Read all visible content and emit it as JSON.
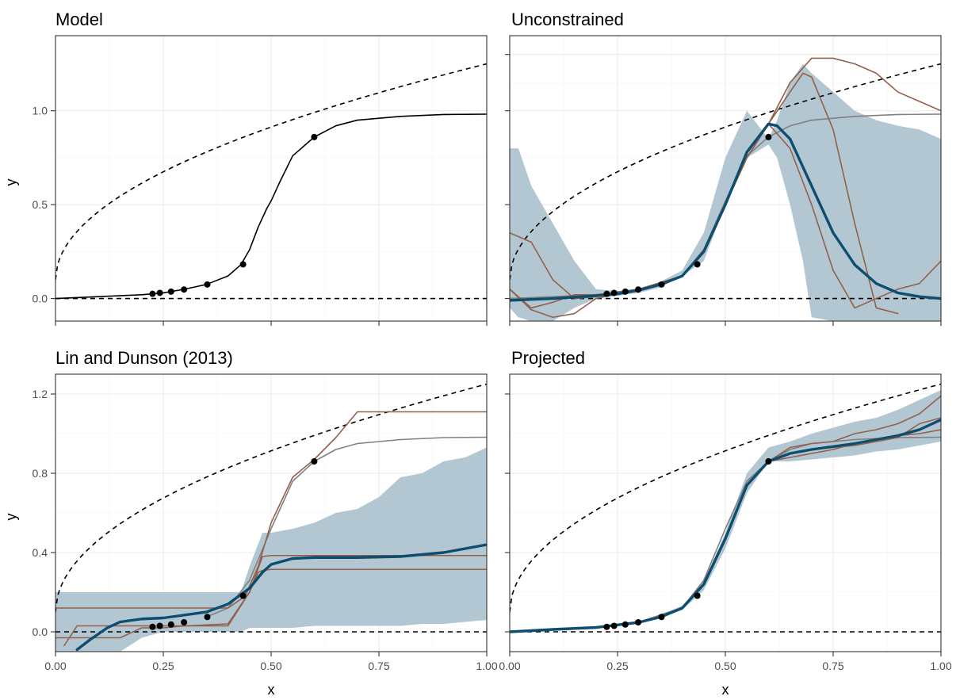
{
  "style": {
    "band_color": "#b3c7d3",
    "mean_color": "#0d4d6f",
    "draw_color": "#93604a",
    "truth_color": "#808080",
    "bound_color": "#000000",
    "point_color": "#000000"
  },
  "x_axis": {
    "label": "x",
    "ticks": [
      "0.00",
      "0.25",
      "0.50",
      "0.75",
      "1.00"
    ]
  },
  "y_axis": {
    "label": "y"
  },
  "chart_data": [
    {
      "type": "line",
      "title": "Model",
      "xlabel": "",
      "ylabel": "y",
      "xlim": [
        0,
        1
      ],
      "ylim": [
        -0.12,
        1.4
      ],
      "yticks": [
        "0.0",
        "0.5",
        "1.0"
      ],
      "grid": true,
      "bounds": {
        "lower": "y = 0 (dashed)",
        "upper": "y = 0.1 + 1.15*sqrt(x) (dashed)"
      },
      "observations": {
        "x": [
          0.225,
          0.242,
          0.268,
          0.298,
          0.352,
          0.435,
          0.6
        ],
        "y": [
          0.025,
          0.03,
          0.037,
          0.048,
          0.075,
          0.182,
          0.86
        ]
      },
      "series": [
        {
          "role": "truth",
          "x": [
            0,
            0.1,
            0.2,
            0.25,
            0.3,
            0.35,
            0.4,
            0.43,
            0.45,
            0.47,
            0.49,
            0.5,
            0.52,
            0.55,
            0.6,
            0.65,
            0.7,
            0.8,
            0.9,
            1.0
          ],
          "y": [
            0,
            0.01,
            0.02,
            0.03,
            0.05,
            0.075,
            0.12,
            0.18,
            0.26,
            0.38,
            0.48,
            0.52,
            0.62,
            0.76,
            0.86,
            0.92,
            0.95,
            0.97,
            0.98,
            0.982
          ]
        }
      ]
    },
    {
      "type": "line",
      "title": "Unconstrained",
      "xlabel": "",
      "ylabel": "",
      "xlim": [
        0,
        1
      ],
      "ylim": [
        -0.12,
        1.4
      ],
      "yticks": [
        "",
        "",
        "",
        ""
      ],
      "grid": true,
      "observations": {
        "x": [
          0.225,
          0.242,
          0.268,
          0.298,
          0.352,
          0.435,
          0.6
        ],
        "y": [
          0.025,
          0.03,
          0.037,
          0.048,
          0.075,
          0.182,
          0.86
        ]
      },
      "band": {
        "x": [
          0,
          0.02,
          0.05,
          0.1,
          0.15,
          0.2,
          0.25,
          0.3,
          0.35,
          0.4,
          0.45,
          0.5,
          0.55,
          0.6,
          0.62,
          0.65,
          0.68,
          0.7,
          0.75,
          0.8,
          0.85,
          0.9,
          0.95,
          1.0
        ],
        "upper": [
          0.8,
          0.8,
          0.6,
          0.4,
          0.2,
          0.05,
          0.04,
          0.05,
          0.09,
          0.15,
          0.35,
          0.75,
          1.0,
          0.85,
          0.95,
          1.15,
          1.25,
          1.2,
          1.1,
          1.0,
          0.95,
          0.92,
          0.9,
          0.85
        ],
        "lower": [
          -0.05,
          -0.1,
          -0.12,
          -0.12,
          -0.05,
          0.0,
          0.015,
          0.03,
          0.06,
          0.12,
          0.2,
          0.5,
          0.75,
          0.82,
          0.75,
          0.5,
          0.2,
          -0.1,
          -0.12,
          -0.12,
          -0.12,
          -0.12,
          -0.12,
          -0.12
        ]
      },
      "series": [
        {
          "role": "truth",
          "x": [
            0,
            0.2,
            0.3,
            0.4,
            0.45,
            0.5,
            0.55,
            0.6,
            0.65,
            0.7,
            0.8,
            0.9,
            1.0
          ],
          "y": [
            0,
            0.02,
            0.05,
            0.12,
            0.26,
            0.52,
            0.76,
            0.86,
            0.92,
            0.95,
            0.97,
            0.98,
            0.982
          ]
        },
        {
          "role": "mean",
          "x": [
            0,
            0.1,
            0.2,
            0.25,
            0.3,
            0.35,
            0.4,
            0.45,
            0.5,
            0.55,
            0.6,
            0.62,
            0.65,
            0.7,
            0.75,
            0.8,
            0.85,
            0.9,
            0.95,
            1.0
          ],
          "y": [
            -0.01,
            0.0,
            0.015,
            0.025,
            0.045,
            0.075,
            0.12,
            0.25,
            0.5,
            0.78,
            0.93,
            0.92,
            0.85,
            0.6,
            0.35,
            0.18,
            0.08,
            0.03,
            0.01,
            0.0
          ]
        },
        {
          "role": "draw",
          "x": [
            0,
            0.05,
            0.1,
            0.15,
            0.2,
            0.3,
            0.4,
            0.45,
            0.5,
            0.55,
            0.6,
            0.65,
            0.7,
            0.75,
            0.8,
            0.85,
            0.9,
            0.95,
            1.0
          ],
          "y": [
            0.35,
            0.3,
            0.1,
            0.0,
            0.01,
            0.05,
            0.12,
            0.26,
            0.5,
            0.75,
            0.93,
            1.15,
            1.28,
            1.28,
            1.25,
            1.2,
            1.1,
            1.05,
            1.0
          ]
        },
        {
          "role": "draw",
          "x": [
            0,
            0.05,
            0.1,
            0.15,
            0.2,
            0.3,
            0.4,
            0.45,
            0.5,
            0.55,
            0.6,
            0.65,
            0.68,
            0.7,
            0.75,
            0.8,
            0.85,
            0.9
          ],
          "y": [
            0.05,
            -0.05,
            -0.02,
            0.02,
            0.02,
            0.05,
            0.12,
            0.26,
            0.5,
            0.75,
            0.93,
            1.1,
            1.2,
            1.18,
            0.9,
            0.4,
            -0.05,
            -0.08
          ]
        },
        {
          "role": "draw",
          "x": [
            0,
            0.05,
            0.1,
            0.15,
            0.2,
            0.3,
            0.4,
            0.45,
            0.5,
            0.55,
            0.6,
            0.65,
            0.7,
            0.75,
            0.8,
            0.85,
            0.9,
            0.95,
            1.0
          ],
          "y": [
            0.05,
            -0.06,
            -0.1,
            -0.08,
            0.0,
            0.05,
            0.12,
            0.26,
            0.5,
            0.75,
            0.93,
            0.8,
            0.5,
            0.15,
            -0.05,
            0.0,
            0.05,
            0.08,
            0.2
          ]
        }
      ]
    },
    {
      "type": "line",
      "title": "Lin and Dunson (2013)",
      "xlabel": "x",
      "ylabel": "y",
      "xlim": [
        0,
        1
      ],
      "ylim": [
        -0.1,
        1.3
      ],
      "yticks": [
        "0.0",
        "0.4",
        "0.8",
        "1.2"
      ],
      "grid": true,
      "observations": {
        "x": [
          0.225,
          0.242,
          0.268,
          0.298,
          0.352,
          0.435,
          0.6
        ],
        "y": [
          0.025,
          0.03,
          0.037,
          0.048,
          0.075,
          0.182,
          0.86
        ]
      },
      "band": {
        "x": [
          0,
          0.05,
          0.1,
          0.15,
          0.2,
          0.25,
          0.3,
          0.35,
          0.4,
          0.43,
          0.45,
          0.48,
          0.5,
          0.55,
          0.6,
          0.65,
          0.7,
          0.75,
          0.8,
          0.85,
          0.9,
          0.95,
          1.0
        ],
        "upper": [
          0.2,
          0.2,
          0.2,
          0.2,
          0.2,
          0.2,
          0.2,
          0.2,
          0.2,
          0.2,
          0.33,
          0.5,
          0.5,
          0.52,
          0.55,
          0.6,
          0.62,
          0.68,
          0.78,
          0.8,
          0.86,
          0.88,
          0.93
        ],
        "lower": [
          -0.1,
          -0.1,
          -0.1,
          -0.1,
          -0.03,
          0.0,
          0.0,
          0.0,
          0.0,
          0.0,
          0.02,
          0.02,
          0.02,
          0.02,
          0.03,
          0.03,
          0.03,
          0.03,
          0.03,
          0.04,
          0.04,
          0.05,
          0.06
        ]
      },
      "series": [
        {
          "role": "truth",
          "x": [
            0.35,
            0.4,
            0.45,
            0.5,
            0.55,
            0.6,
            0.65,
            0.7,
            0.8,
            0.9,
            1.0
          ],
          "y": [
            0.075,
            0.12,
            0.26,
            0.52,
            0.76,
            0.86,
            0.92,
            0.95,
            0.97,
            0.98,
            0.982
          ]
        },
        {
          "role": "mean",
          "x": [
            0.05,
            0.08,
            0.12,
            0.15,
            0.2,
            0.25,
            0.3,
            0.35,
            0.4,
            0.45,
            0.48,
            0.5,
            0.55,
            0.6,
            0.7,
            0.8,
            0.9,
            1.0
          ],
          "y": [
            -0.09,
            -0.04,
            0.02,
            0.05,
            0.065,
            0.07,
            0.085,
            0.1,
            0.14,
            0.22,
            0.3,
            0.34,
            0.37,
            0.375,
            0.375,
            0.38,
            0.4,
            0.44
          ]
        },
        {
          "role": "draw",
          "x": [
            0,
            0.2,
            0.4,
            0.44,
            0.47,
            0.5,
            0.55,
            0.6,
            0.65,
            0.7,
            1.0
          ],
          "y": [
            0.12,
            0.12,
            0.12,
            0.18,
            0.33,
            0.55,
            0.78,
            0.87,
            0.98,
            1.11,
            1.11
          ]
        },
        {
          "role": "draw",
          "x": [
            0.02,
            0.05,
            0.1,
            0.2,
            0.3,
            0.4,
            0.45,
            0.48,
            0.5,
            1.0
          ],
          "y": [
            -0.07,
            0.03,
            0.03,
            0.03,
            0.03,
            0.04,
            0.2,
            0.38,
            0.385,
            0.385
          ]
        },
        {
          "role": "draw",
          "x": [
            0,
            0.1,
            0.15,
            0.2,
            0.25,
            0.3,
            0.4,
            0.45,
            0.47,
            0.48,
            0.5,
            1.0
          ],
          "y": [
            -0.03,
            -0.03,
            -0.03,
            0.02,
            0.02,
            0.03,
            0.03,
            0.2,
            0.3,
            0.31,
            0.315,
            0.315
          ]
        }
      ]
    },
    {
      "type": "line",
      "title": "Projected",
      "xlabel": "x",
      "ylabel": "",
      "xlim": [
        0,
        1
      ],
      "ylim": [
        -0.1,
        1.3
      ],
      "yticks": [
        "",
        "",
        "",
        ""
      ],
      "grid": true,
      "observations": {
        "x": [
          0.225,
          0.242,
          0.268,
          0.298,
          0.352,
          0.435,
          0.6
        ],
        "y": [
          0.025,
          0.03,
          0.037,
          0.048,
          0.075,
          0.182,
          0.86
        ]
      },
      "band": {
        "x": [
          0,
          0.1,
          0.2,
          0.3,
          0.4,
          0.45,
          0.5,
          0.55,
          0.6,
          0.65,
          0.7,
          0.75,
          0.8,
          0.85,
          0.9,
          0.95,
          1.0
        ],
        "upper": [
          0.0,
          0.015,
          0.025,
          0.05,
          0.13,
          0.25,
          0.5,
          0.8,
          0.93,
          0.96,
          1.0,
          1.03,
          1.06,
          1.08,
          1.12,
          1.17,
          1.22
        ],
        "lower": [
          0.0,
          0.01,
          0.02,
          0.04,
          0.11,
          0.21,
          0.42,
          0.7,
          0.86,
          0.86,
          0.87,
          0.88,
          0.89,
          0.91,
          0.92,
          0.94,
          0.96
        ]
      },
      "series": [
        {
          "role": "truth",
          "x": [
            0,
            0.2,
            0.3,
            0.4,
            0.45,
            0.5,
            0.55,
            0.6,
            0.65,
            0.7,
            0.8,
            0.9,
            1.0
          ],
          "y": [
            0,
            0.02,
            0.05,
            0.12,
            0.26,
            0.52,
            0.76,
            0.86,
            0.92,
            0.95,
            0.97,
            0.98,
            0.982
          ]
        },
        {
          "role": "mean",
          "x": [
            0,
            0.1,
            0.2,
            0.3,
            0.35,
            0.4,
            0.45,
            0.5,
            0.55,
            0.6,
            0.65,
            0.7,
            0.8,
            0.9,
            0.95,
            1.0
          ],
          "y": [
            0.0,
            0.012,
            0.022,
            0.048,
            0.075,
            0.12,
            0.24,
            0.47,
            0.74,
            0.86,
            0.9,
            0.92,
            0.95,
            0.99,
            1.02,
            1.07
          ]
        },
        {
          "role": "draw",
          "x": [
            0.6,
            0.65,
            0.7,
            0.75,
            0.8,
            0.85,
            0.9,
            0.95,
            1.0
          ],
          "y": [
            0.86,
            0.93,
            0.95,
            0.96,
            1.0,
            1.02,
            1.05,
            1.1,
            1.19
          ]
        },
        {
          "role": "draw",
          "x": [
            0.6,
            0.65,
            0.7,
            0.75,
            0.8,
            0.85,
            0.9,
            0.95,
            1.0
          ],
          "y": [
            0.86,
            0.88,
            0.9,
            0.92,
            0.95,
            0.97,
            0.99,
            1.0,
            1.02
          ]
        },
        {
          "role": "draw",
          "x": [
            0.6,
            0.65,
            0.7,
            0.75,
            0.8,
            0.85,
            0.9,
            0.95,
            1.0
          ],
          "y": [
            0.86,
            0.9,
            0.92,
            0.93,
            0.94,
            0.96,
            0.98,
            1.05,
            1.08
          ]
        }
      ]
    }
  ]
}
